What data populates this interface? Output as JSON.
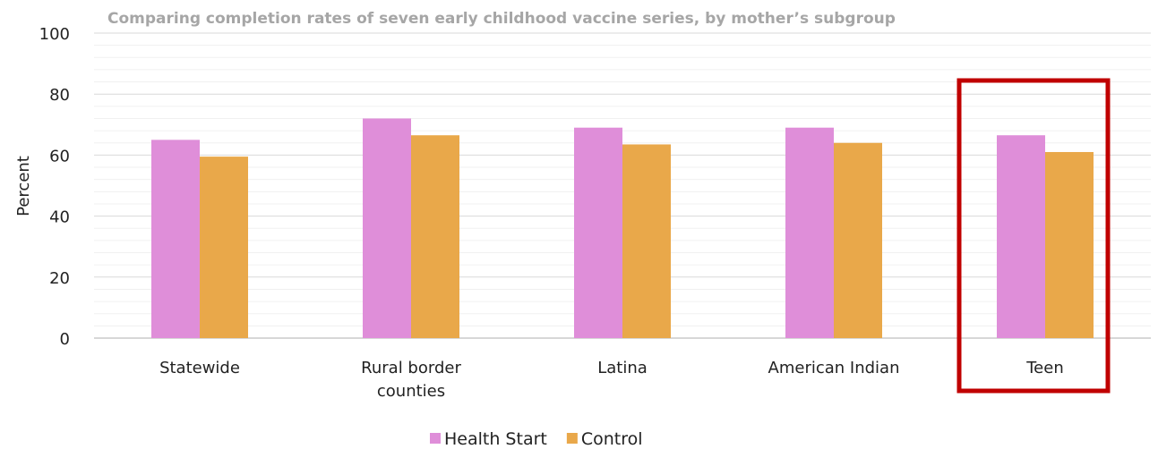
{
  "chart_data": {
    "type": "bar",
    "title": "Comparing completion rates of seven early childhood vaccine series, by mother’s subgroup",
    "ylabel": "Percent",
    "xlabel": "",
    "ylim": [
      0,
      100
    ],
    "yticks": [
      0,
      20,
      40,
      60,
      80,
      100
    ],
    "grid": true,
    "legend_position": "bottom",
    "categories": [
      [
        "Statewide"
      ],
      [
        "Rural border",
        "counties"
      ],
      [
        "Latina"
      ],
      [
        "American Indian"
      ],
      [
        "Teen"
      ]
    ],
    "series": [
      {
        "name": "Health Start",
        "color": "#df8ed9",
        "values": [
          65,
          72,
          69,
          69,
          66.5
        ]
      },
      {
        "name": "Control",
        "color": "#e9a84a",
        "values": [
          59.5,
          66.5,
          63.5,
          64,
          61
        ]
      }
    ],
    "highlight": {
      "category_index": 4,
      "color": "#c00000"
    }
  }
}
